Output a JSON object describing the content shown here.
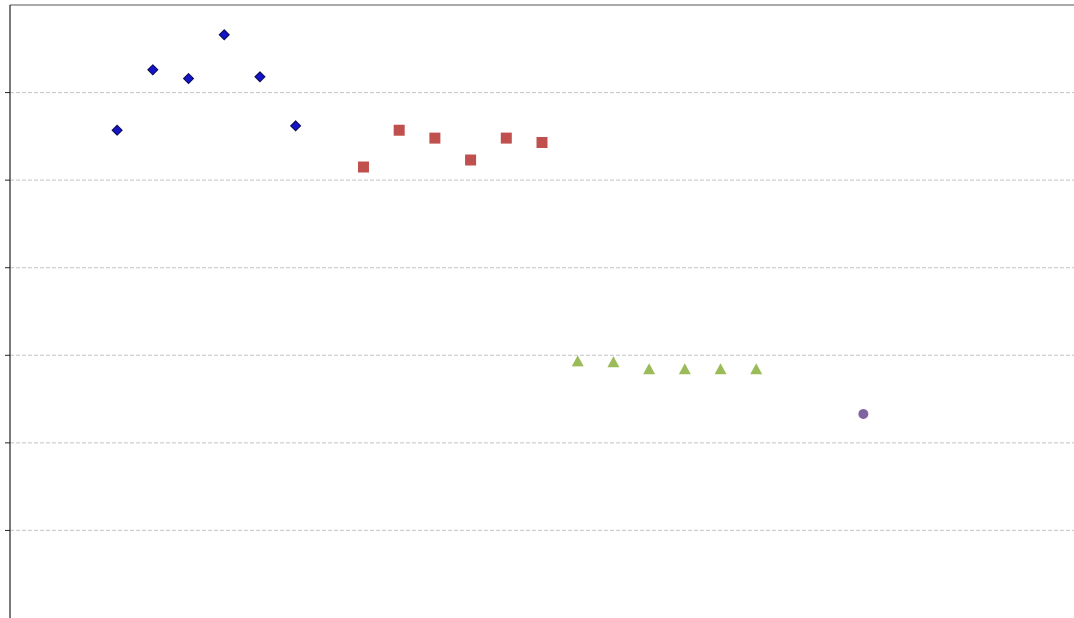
{
  "chart_data": {
    "type": "scatter",
    "xlim": [
      -2,
      27.8
    ],
    "ylim": [
      0,
      7
    ],
    "yticks": [
      1,
      2,
      3,
      4,
      5,
      6
    ],
    "grid": true,
    "series": [
      {
        "color": "#1414c8",
        "marker": "diamond",
        "x": [
          1,
          2,
          3,
          4,
          5,
          6
        ],
        "values": [
          5.57,
          6.26,
          6.16,
          6.66,
          6.18,
          5.62
        ]
      },
      {
        "color": "#c0504d",
        "marker": "square",
        "x": [
          7.9,
          8.9,
          9.9,
          10.9,
          11.9,
          12.9
        ],
        "values": [
          5.15,
          5.57,
          5.48,
          5.23,
          5.48,
          5.43
        ]
      },
      {
        "color": "#9bbb59",
        "marker": "triangle",
        "x": [
          13.9,
          14.9,
          15.9,
          16.9,
          17.9,
          18.9
        ],
        "values": [
          2.93,
          2.92,
          2.84,
          2.84,
          2.84,
          2.84
        ]
      },
      {
        "color": "#8064a2",
        "marker": "circle",
        "x": [
          21.9
        ],
        "values": [
          2.33
        ]
      }
    ]
  }
}
